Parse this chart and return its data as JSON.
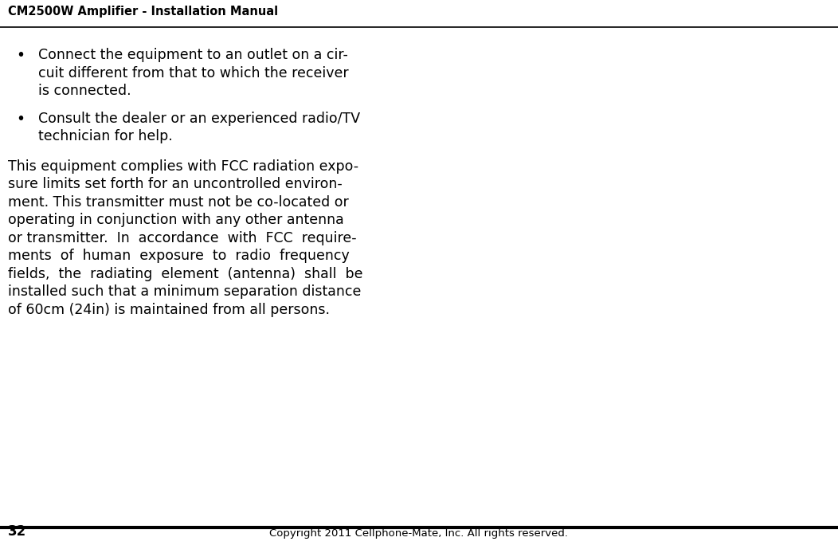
{
  "header_title": "CM2500W Amplifier - Installation Manual",
  "header_font_size": 10.5,
  "header_bold": true,
  "bullet1_lines": [
    "Connect the equipment to an outlet on a cir-",
    "cuit different from that to which the receiver",
    "is connected."
  ],
  "bullet2_lines": [
    "Consult the dealer or an experienced radio/TV",
    "technician for help."
  ],
  "para_lines": [
    "This equipment complies with FCC radiation expo-",
    "sure limits set forth for an uncontrolled environ-",
    "ment. This transmitter must not be co-located or",
    "operating in conjunction with any other antenna",
    "or transmitter.  In  accordance  with  FCC  require-",
    "ments  of  human  exposure  to  radio  frequency",
    "fields,  the  radiating  element  (antenna)  shall  be",
    "installed such that a minimum separation distance",
    "of 60cm (24in) is maintained from all persons."
  ],
  "footer_page": "32",
  "footer_copy": "Copyright 2011 Cellphone-Mate, Inc. All rights reserved.",
  "bg_color": "#ffffff",
  "text_color": "#000000"
}
